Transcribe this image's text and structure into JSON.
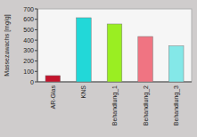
{
  "chart_data": {
    "type": "bar",
    "y_label": "Massezuwachs [mg/g]",
    "categories": [
      "AR-Glas",
      "KNS",
      "Behandlung_1",
      "Behandlung_2",
      "Behandlung_3"
    ],
    "values": [
      60,
      615,
      555,
      435,
      345
    ],
    "colors": [
      "#c4142c",
      "#22d8d8",
      "#9aee22",
      "#f07482",
      "#84e8e8"
    ],
    "ylim": [
      0,
      700
    ],
    "yticks": [
      0,
      100,
      200,
      300,
      400,
      500,
      600,
      700
    ],
    "grid": false
  }
}
